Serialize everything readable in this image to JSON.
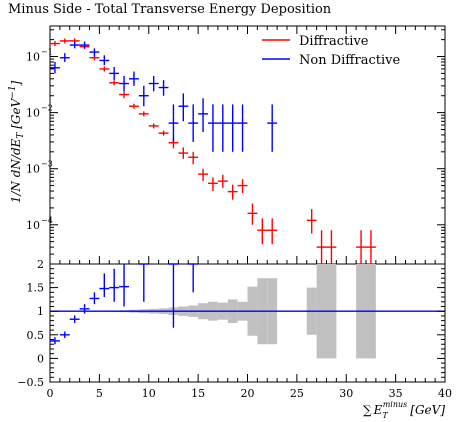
{
  "chart_data": [
    {
      "type": "scatter",
      "title": "Minus Side - Total Transverse Energy Deposition",
      "xlabel": "∑ E_T^minus [GeV]",
      "ylabel": "1/N dN/dE_T [GeV^-1]",
      "yscale": "log",
      "xlim": [
        0,
        40
      ],
      "ylim": [
        2e-05,
        0.35
      ],
      "legend": {
        "placement": "top-right"
      },
      "series": [
        {
          "name": "Diffractive",
          "color": "#ff0000",
          "points": [
            {
              "x": 0.5,
              "y": 0.17,
              "xerr": 0.5
            },
            {
              "x": 1.5,
              "y": 0.19,
              "xerr": 0.5
            },
            {
              "x": 2.5,
              "y": 0.19,
              "xerr": 0.5
            },
            {
              "x": 3.5,
              "y": 0.15,
              "xerr": 0.5
            },
            {
              "x": 4.5,
              "y": 0.095,
              "xerr": 0.5
            },
            {
              "x": 5.5,
              "y": 0.06,
              "xerr": 0.5
            },
            {
              "x": 6.5,
              "y": 0.034,
              "xerr": 0.5
            },
            {
              "x": 7.5,
              "y": 0.021,
              "xerr": 0.5,
              "yerr": [
                0.018,
                0.024
              ]
            },
            {
              "x": 8.5,
              "y": 0.013,
              "xerr": 0.5
            },
            {
              "x": 9.5,
              "y": 0.0095,
              "xerr": 0.5
            },
            {
              "x": 10.5,
              "y": 0.0058,
              "xerr": 0.5
            },
            {
              "x": 11.5,
              "y": 0.0043,
              "xerr": 0.5
            },
            {
              "x": 12.5,
              "y": 0.0029,
              "xerr": 0.5,
              "yerr": [
                0.0023,
                0.0036
              ]
            },
            {
              "x": 13.5,
              "y": 0.0019,
              "xerr": 0.5,
              "yerr": [
                0.0015,
                0.0024
              ]
            },
            {
              "x": 14.5,
              "y": 0.0016,
              "xerr": 0.5,
              "yerr": [
                0.0012,
                0.002
              ]
            },
            {
              "x": 15.5,
              "y": 0.0008,
              "xerr": 0.5,
              "yerr": [
                0.0006,
                0.001
              ]
            },
            {
              "x": 16.5,
              "y": 0.00055,
              "xerr": 0.5,
              "yerr": [
                0.0004,
                0.0007
              ]
            },
            {
              "x": 17.5,
              "y": 0.0006,
              "xerr": 0.5,
              "yerr": [
                0.00045,
                0.00078
              ]
            },
            {
              "x": 18.5,
              "y": 0.00039,
              "xerr": 0.5,
              "yerr": [
                0.00028,
                0.00052
              ]
            },
            {
              "x": 19.5,
              "y": 0.0005,
              "xerr": 0.5,
              "yerr": [
                0.00037,
                0.00065
              ]
            },
            {
              "x": 20.5,
              "y": 0.00016,
              "xerr": 0.5,
              "yerr": [
                0.0001,
                0.00024
              ]
            },
            {
              "x": 21.5,
              "y": 8e-05,
              "xerr": 0.5,
              "yerr": [
                4.5e-05,
                0.00013
              ]
            },
            {
              "x": 22.5,
              "y": 8e-05,
              "xerr": 0.5,
              "yerr": [
                4.5e-05,
                0.00013
              ]
            },
            {
              "x": 26.5,
              "y": 0.00012,
              "xerr": 0.5,
              "yerr": [
                7e-05,
                0.00019
              ]
            },
            {
              "x": 27.5,
              "y": 4e-05,
              "xerr": 0.5,
              "yerr": [
                2e-05,
                8e-05
              ]
            },
            {
              "x": 28.5,
              "y": 4e-05,
              "xerr": 0.5,
              "yerr": [
                2e-05,
                8e-05
              ]
            },
            {
              "x": 31.5,
              "y": 4e-05,
              "xerr": 0.5,
              "yerr": [
                2e-05,
                8e-05
              ]
            },
            {
              "x": 32.5,
              "y": 4e-05,
              "xerr": 0.5,
              "yerr": [
                2e-05,
                8e-05
              ]
            }
          ]
        },
        {
          "name": "Non Diffractive",
          "color": "#0000ff",
          "points": [
            {
              "x": 0.5,
              "y": 0.063,
              "xerr": 0.5,
              "yerr": [
                0.05,
                0.08
              ]
            },
            {
              "x": 1.5,
              "y": 0.095,
              "xerr": 0.5,
              "yerr": [
                0.08,
                0.115
              ]
            },
            {
              "x": 2.5,
              "y": 0.16,
              "xerr": 0.5,
              "yerr": [
                0.14,
                0.185
              ]
            },
            {
              "x": 3.5,
              "y": 0.16,
              "xerr": 0.5,
              "yerr": [
                0.14,
                0.185
              ]
            },
            {
              "x": 4.5,
              "y": 0.12,
              "xerr": 0.5,
              "yerr": [
                0.1,
                0.14
              ]
            },
            {
              "x": 5.5,
              "y": 0.085,
              "xerr": 0.5,
              "yerr": [
                0.07,
                0.105
              ]
            },
            {
              "x": 6.5,
              "y": 0.05,
              "xerr": 0.5,
              "yerr": [
                0.038,
                0.065
              ]
            },
            {
              "x": 7.5,
              "y": 0.033,
              "xerr": 0.5,
              "yerr": [
                0.024,
                0.045
              ]
            },
            {
              "x": 8.5,
              "y": 0.04,
              "xerr": 0.5,
              "yerr": [
                0.03,
                0.054
              ]
            },
            {
              "x": 9.5,
              "y": 0.02,
              "xerr": 0.5,
              "yerr": [
                0.013,
                0.03
              ]
            },
            {
              "x": 10.5,
              "y": 0.033,
              "xerr": 0.5,
              "yerr": [
                0.024,
                0.045
              ]
            },
            {
              "x": 11.5,
              "y": 0.028,
              "xerr": 0.5,
              "yerr": [
                0.02,
                0.038
              ]
            },
            {
              "x": 12.5,
              "y": 0.0065,
              "xerr": 0.5,
              "yerr": [
                0.003,
                0.014
              ]
            },
            {
              "x": 13.5,
              "y": 0.013,
              "xerr": 0.5,
              "yerr": [
                0.007,
                0.022
              ]
            },
            {
              "x": 14.5,
              "y": 0.0065,
              "xerr": 0.5,
              "yerr": [
                0.003,
                0.014
              ]
            },
            {
              "x": 15.5,
              "y": 0.0095,
              "xerr": 0.5,
              "yerr": [
                0.0045,
                0.018
              ]
            },
            {
              "x": 16.5,
              "y": 0.0065,
              "xerr": 0.5,
              "yerr": [
                0.002,
                0.014
              ]
            },
            {
              "x": 17.5,
              "y": 0.0065,
              "xerr": 0.5,
              "yerr": [
                0.002,
                0.014
              ]
            },
            {
              "x": 18.5,
              "y": 0.0065,
              "xerr": 0.5,
              "yerr": [
                0.002,
                0.014
              ]
            },
            {
              "x": 19.5,
              "y": 0.0065,
              "xerr": 0.5,
              "yerr": [
                0.002,
                0.014
              ]
            },
            {
              "x": 22.5,
              "y": 0.0065,
              "xerr": 0.5,
              "yerr": [
                0.002,
                0.014
              ]
            }
          ]
        }
      ]
    },
    {
      "type": "scatter",
      "xlim": [
        0,
        40
      ],
      "ylim": [
        -0.5,
        2
      ],
      "reference_line": 1,
      "band": {
        "color": "#c0c0c0",
        "bins": [
          {
            "x": 4.5,
            "lo": 0.99,
            "hi": 1.01
          },
          {
            "x": 5.5,
            "lo": 0.99,
            "hi": 1.01
          },
          {
            "x": 6.5,
            "lo": 0.985,
            "hi": 1.015
          },
          {
            "x": 7.5,
            "lo": 0.98,
            "hi": 1.02
          },
          {
            "x": 8.5,
            "lo": 0.97,
            "hi": 1.03
          },
          {
            "x": 9.5,
            "lo": 0.96,
            "hi": 1.04
          },
          {
            "x": 10.5,
            "lo": 0.95,
            "hi": 1.05
          },
          {
            "x": 11.5,
            "lo": 0.94,
            "hi": 1.06
          },
          {
            "x": 12.5,
            "lo": 0.92,
            "hi": 1.08
          },
          {
            "x": 13.5,
            "lo": 0.9,
            "hi": 1.1
          },
          {
            "x": 14.5,
            "lo": 0.88,
            "hi": 1.12
          },
          {
            "x": 15.5,
            "lo": 0.83,
            "hi": 1.17
          },
          {
            "x": 16.5,
            "lo": 0.8,
            "hi": 1.2
          },
          {
            "x": 17.5,
            "lo": 0.82,
            "hi": 1.18
          },
          {
            "x": 18.5,
            "lo": 0.75,
            "hi": 1.25
          },
          {
            "x": 19.5,
            "lo": 0.8,
            "hi": 1.2
          },
          {
            "x": 20.5,
            "lo": 0.48,
            "hi": 1.52
          },
          {
            "x": 21.5,
            "lo": 0.3,
            "hi": 1.7
          },
          {
            "x": 22.5,
            "lo": 0.3,
            "hi": 1.7
          },
          {
            "x": 26.5,
            "lo": 0.5,
            "hi": 1.5
          },
          {
            "x": 27.5,
            "lo": 0.0,
            "hi": 2.0
          },
          {
            "x": 28.5,
            "lo": 0.0,
            "hi": 2.0
          },
          {
            "x": 31.5,
            "lo": 0.0,
            "hi": 2.0
          },
          {
            "x": 32.5,
            "lo": 0.0,
            "hi": 2.0
          }
        ]
      },
      "series": [
        {
          "name": "Non Diffractive",
          "color": "#0000ff",
          "points": [
            {
              "x": 0.5,
              "y": 0.37,
              "xerr": 0.5,
              "yerr": [
                0.3,
                0.45
              ]
            },
            {
              "x": 1.5,
              "y": 0.5,
              "xerr": 0.5,
              "yerr": [
                0.43,
                0.57
              ]
            },
            {
              "x": 2.5,
              "y": 0.83,
              "xerr": 0.5,
              "yerr": [
                0.75,
                0.91
              ]
            },
            {
              "x": 3.5,
              "y": 1.05,
              "xerr": 0.5,
              "yerr": [
                0.95,
                1.15
              ]
            },
            {
              "x": 4.5,
              "y": 1.27,
              "xerr": 0.5,
              "yerr": [
                1.15,
                1.4
              ]
            },
            {
              "x": 5.5,
              "y": 1.48,
              "xerr": 0.5,
              "yerr": [
                1.3,
                1.8
              ]
            },
            {
              "x": 6.5,
              "y": 1.5,
              "xerr": 0.5,
              "yerr": [
                1.2,
                1.9
              ]
            },
            {
              "x": 7.5,
              "y": 1.52,
              "xerr": 0.5,
              "yerr": [
                1.1,
                2.0
              ]
            },
            {
              "x": 9.5,
              "y": 2.0,
              "xerr": 0.5,
              "yerr": [
                1.2,
                2.0
              ]
            },
            {
              "x": 12.5,
              "y": 2.0,
              "xerr": 0.5,
              "yerr": [
                0.65,
                2.0
              ]
            },
            {
              "x": 14.5,
              "y": 2.0,
              "xerr": 0.5,
              "yerr": [
                1.4,
                2.0
              ]
            }
          ]
        }
      ]
    }
  ],
  "labels": {
    "title": "Minus Side - Total Transverse Energy Deposition",
    "xlabel_sum": "∑",
    "xlabel_E": "E",
    "xlabel_sub": "T",
    "xlabel_sup": "minus",
    "xlabel_unit": "[GeV]",
    "ylabel": "1/N dN/dE",
    "ylabel_sub": "T",
    "ylabel_unit": " [GeV",
    "ylabel_sup": "−1",
    "ylabel_close": "]",
    "upper_ticks": [
      "10",
      "10",
      "10",
      "10"
    ],
    "upper_tick_exps": [
      "−1",
      "−2",
      "−3",
      "−4"
    ],
    "lower_ticks": [
      "2",
      "1.5",
      "1",
      "0.5",
      "0",
      "−0.5"
    ],
    "x_ticks": [
      "0",
      "5",
      "10",
      "15",
      "20",
      "25",
      "30",
      "35",
      "40"
    ]
  },
  "legend": [
    {
      "label": "Diffractive",
      "color": "#ff0000"
    },
    {
      "label": "Non Diffractive",
      "color": "#0000ff"
    }
  ]
}
